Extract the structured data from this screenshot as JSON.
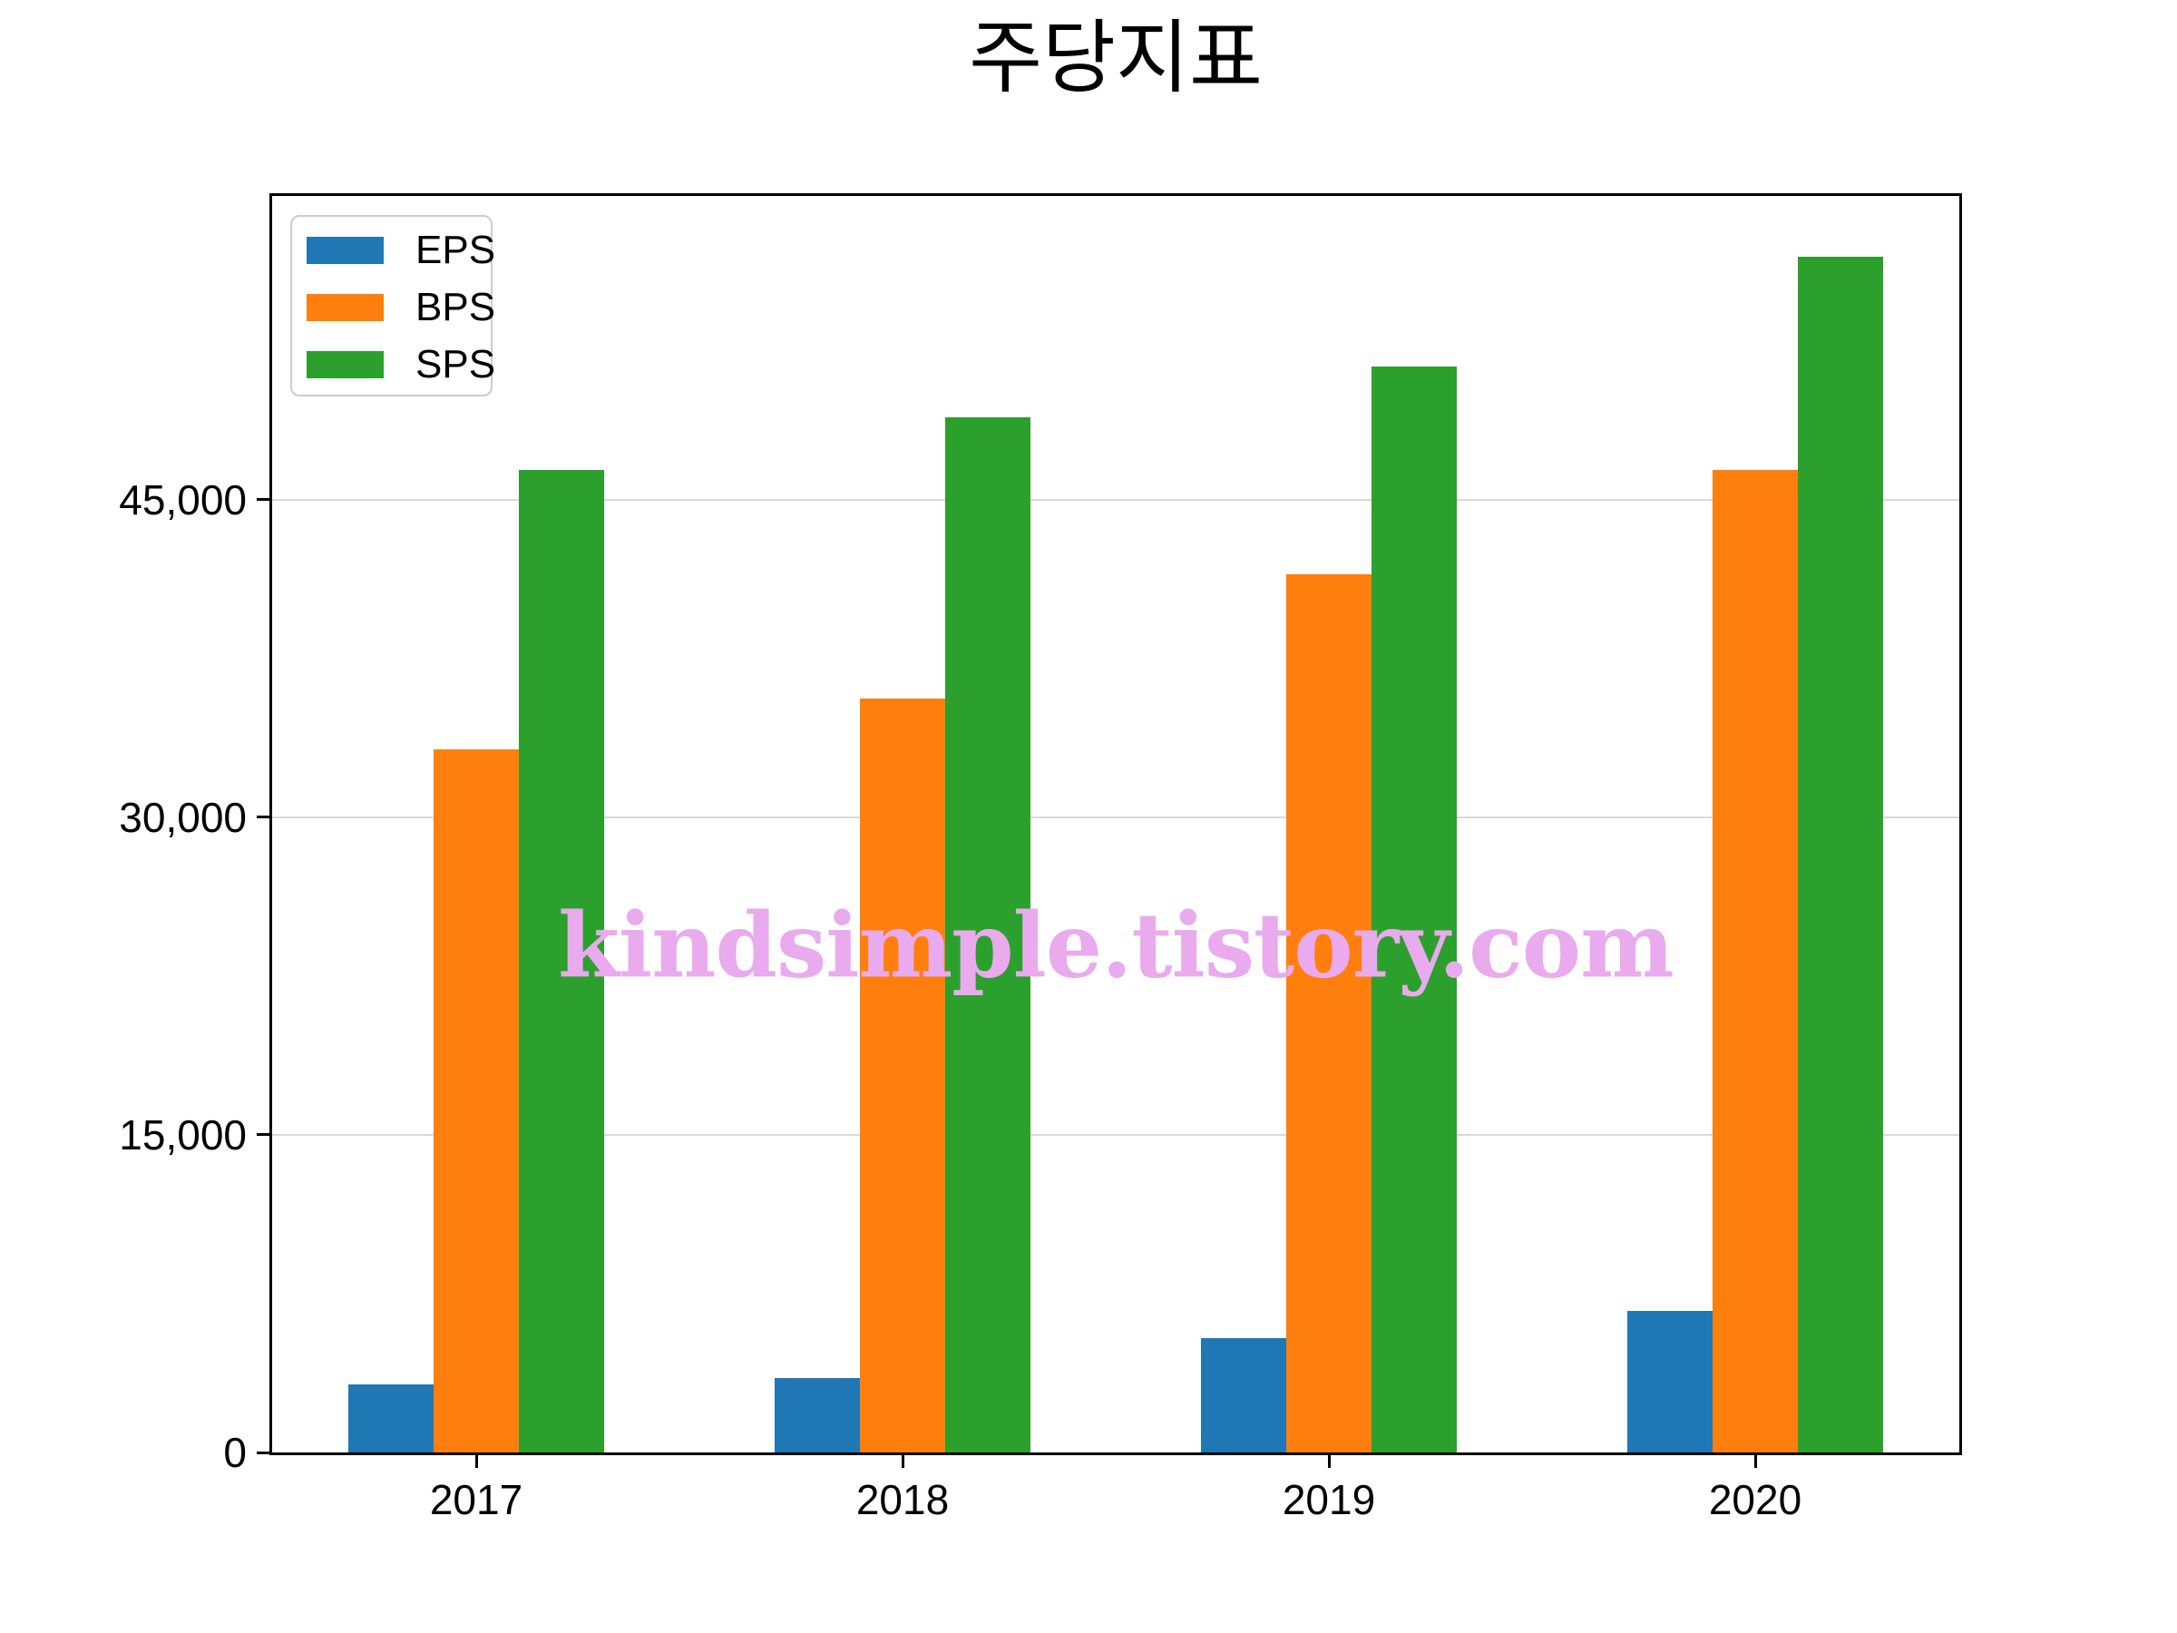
{
  "chart_data": {
    "type": "bar",
    "title": "주당지표",
    "categories": [
      "2017",
      "2018",
      "2019",
      "2020"
    ],
    "series": [
      {
        "name": "EPS",
        "color": "#1f77b4",
        "values": [
          3200,
          3500,
          5400,
          6700
        ]
      },
      {
        "name": "BPS",
        "color": "#ff7f0e",
        "values": [
          33200,
          35600,
          41500,
          46400
        ]
      },
      {
        "name": "SPS",
        "color": "#2ca02c",
        "values": [
          46400,
          48900,
          51300,
          56500
        ]
      }
    ],
    "xlabel": "",
    "ylabel": "",
    "ylim": [
      0,
      59350
    ],
    "yticks": [
      0,
      15000,
      30000,
      45000
    ],
    "ytick_labels": [
      "0",
      "15,000",
      "30,000",
      "45,000"
    ],
    "grid": "horizontal-only",
    "gridline_color": "#d9d9d9",
    "legend_position": "upper-left",
    "bar_group_order": [
      "EPS",
      "BPS",
      "SPS"
    ]
  },
  "watermark": {
    "text": "kindsimple.tistory.com",
    "color": "#e9aaee"
  }
}
